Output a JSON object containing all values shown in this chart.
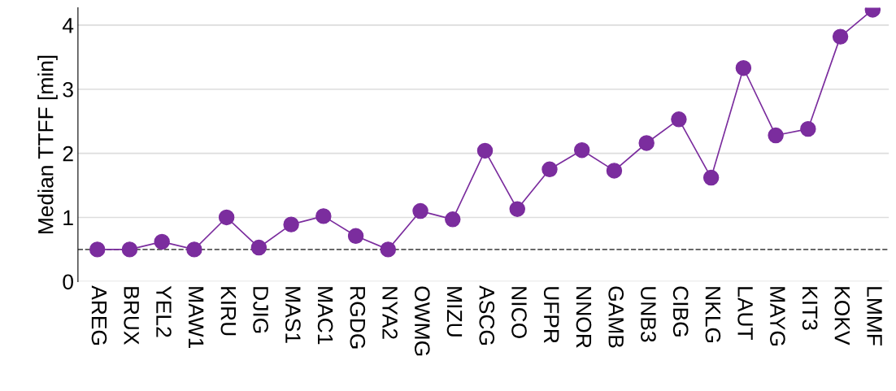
{
  "chart_data": {
    "type": "line",
    "ylabel": "Median TTFF [min]",
    "categories": [
      "AREG",
      "BRUX",
      "YEL2",
      "MAW1",
      "KIRU",
      "DJIG",
      "MAS1",
      "MAC1",
      "RGDG",
      "NYA2",
      "OWMG",
      "MIZU",
      "ASCG",
      "NICO",
      "UFPR",
      "NNOR",
      "GAMB",
      "UNB3",
      "CIBG",
      "NKLG",
      "LAUT",
      "MAYG",
      "KIT3",
      "KOKV",
      "LMMF"
    ],
    "series": [
      {
        "color": "#7b2d9e",
        "values": [
          0.5,
          0.5,
          0.62,
          0.5,
          1.0,
          0.53,
          0.89,
          1.02,
          0.71,
          0.5,
          1.1,
          0.97,
          2.04,
          1.13,
          1.75,
          2.05,
          1.73,
          2.16,
          2.53,
          1.62,
          3.33,
          2.28,
          2.38,
          3.82,
          4.24
        ]
      }
    ],
    "ylim": [
      0,
      4.27
    ],
    "yticks": [
      0,
      1,
      2,
      3,
      4
    ],
    "grid": "y",
    "marker": "circle",
    "line_style": "solid",
    "legend": false,
    "ref_lines": [
      {
        "axis": "y",
        "value": 0.5,
        "color": "#555555",
        "line_style": "dashed"
      }
    ]
  }
}
